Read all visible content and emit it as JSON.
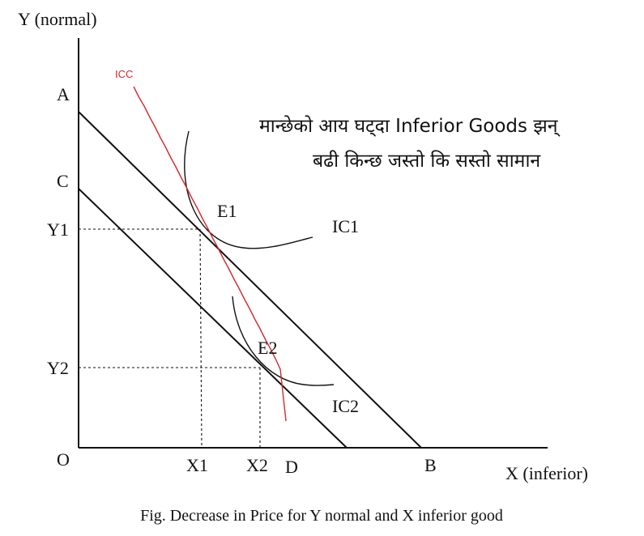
{
  "axes": {
    "y_label": "Y (normal)",
    "x_label": "X (inferior)",
    "origin": "O"
  },
  "points": {
    "A": "A",
    "B": "B",
    "C": "C",
    "D": "D",
    "E1": "E1",
    "E2": "E2"
  },
  "ticks": {
    "Y1": "Y1",
    "Y2": "Y2",
    "X1": "X1",
    "X2": "X2"
  },
  "curves": {
    "IC1": "IC1",
    "IC2": "IC2",
    "ICC": "ICC"
  },
  "annotation": {
    "line1": "मान्छेको आय घट्दा Inferior Goods झन्",
    "line2": "बढी किन्छ जस्तो कि सस्तो सामान"
  },
  "caption": "Fig. Decrease in Price for Y normal and X inferior good",
  "colors": {
    "icc": "#d42a2a",
    "ink": "#111111"
  }
}
